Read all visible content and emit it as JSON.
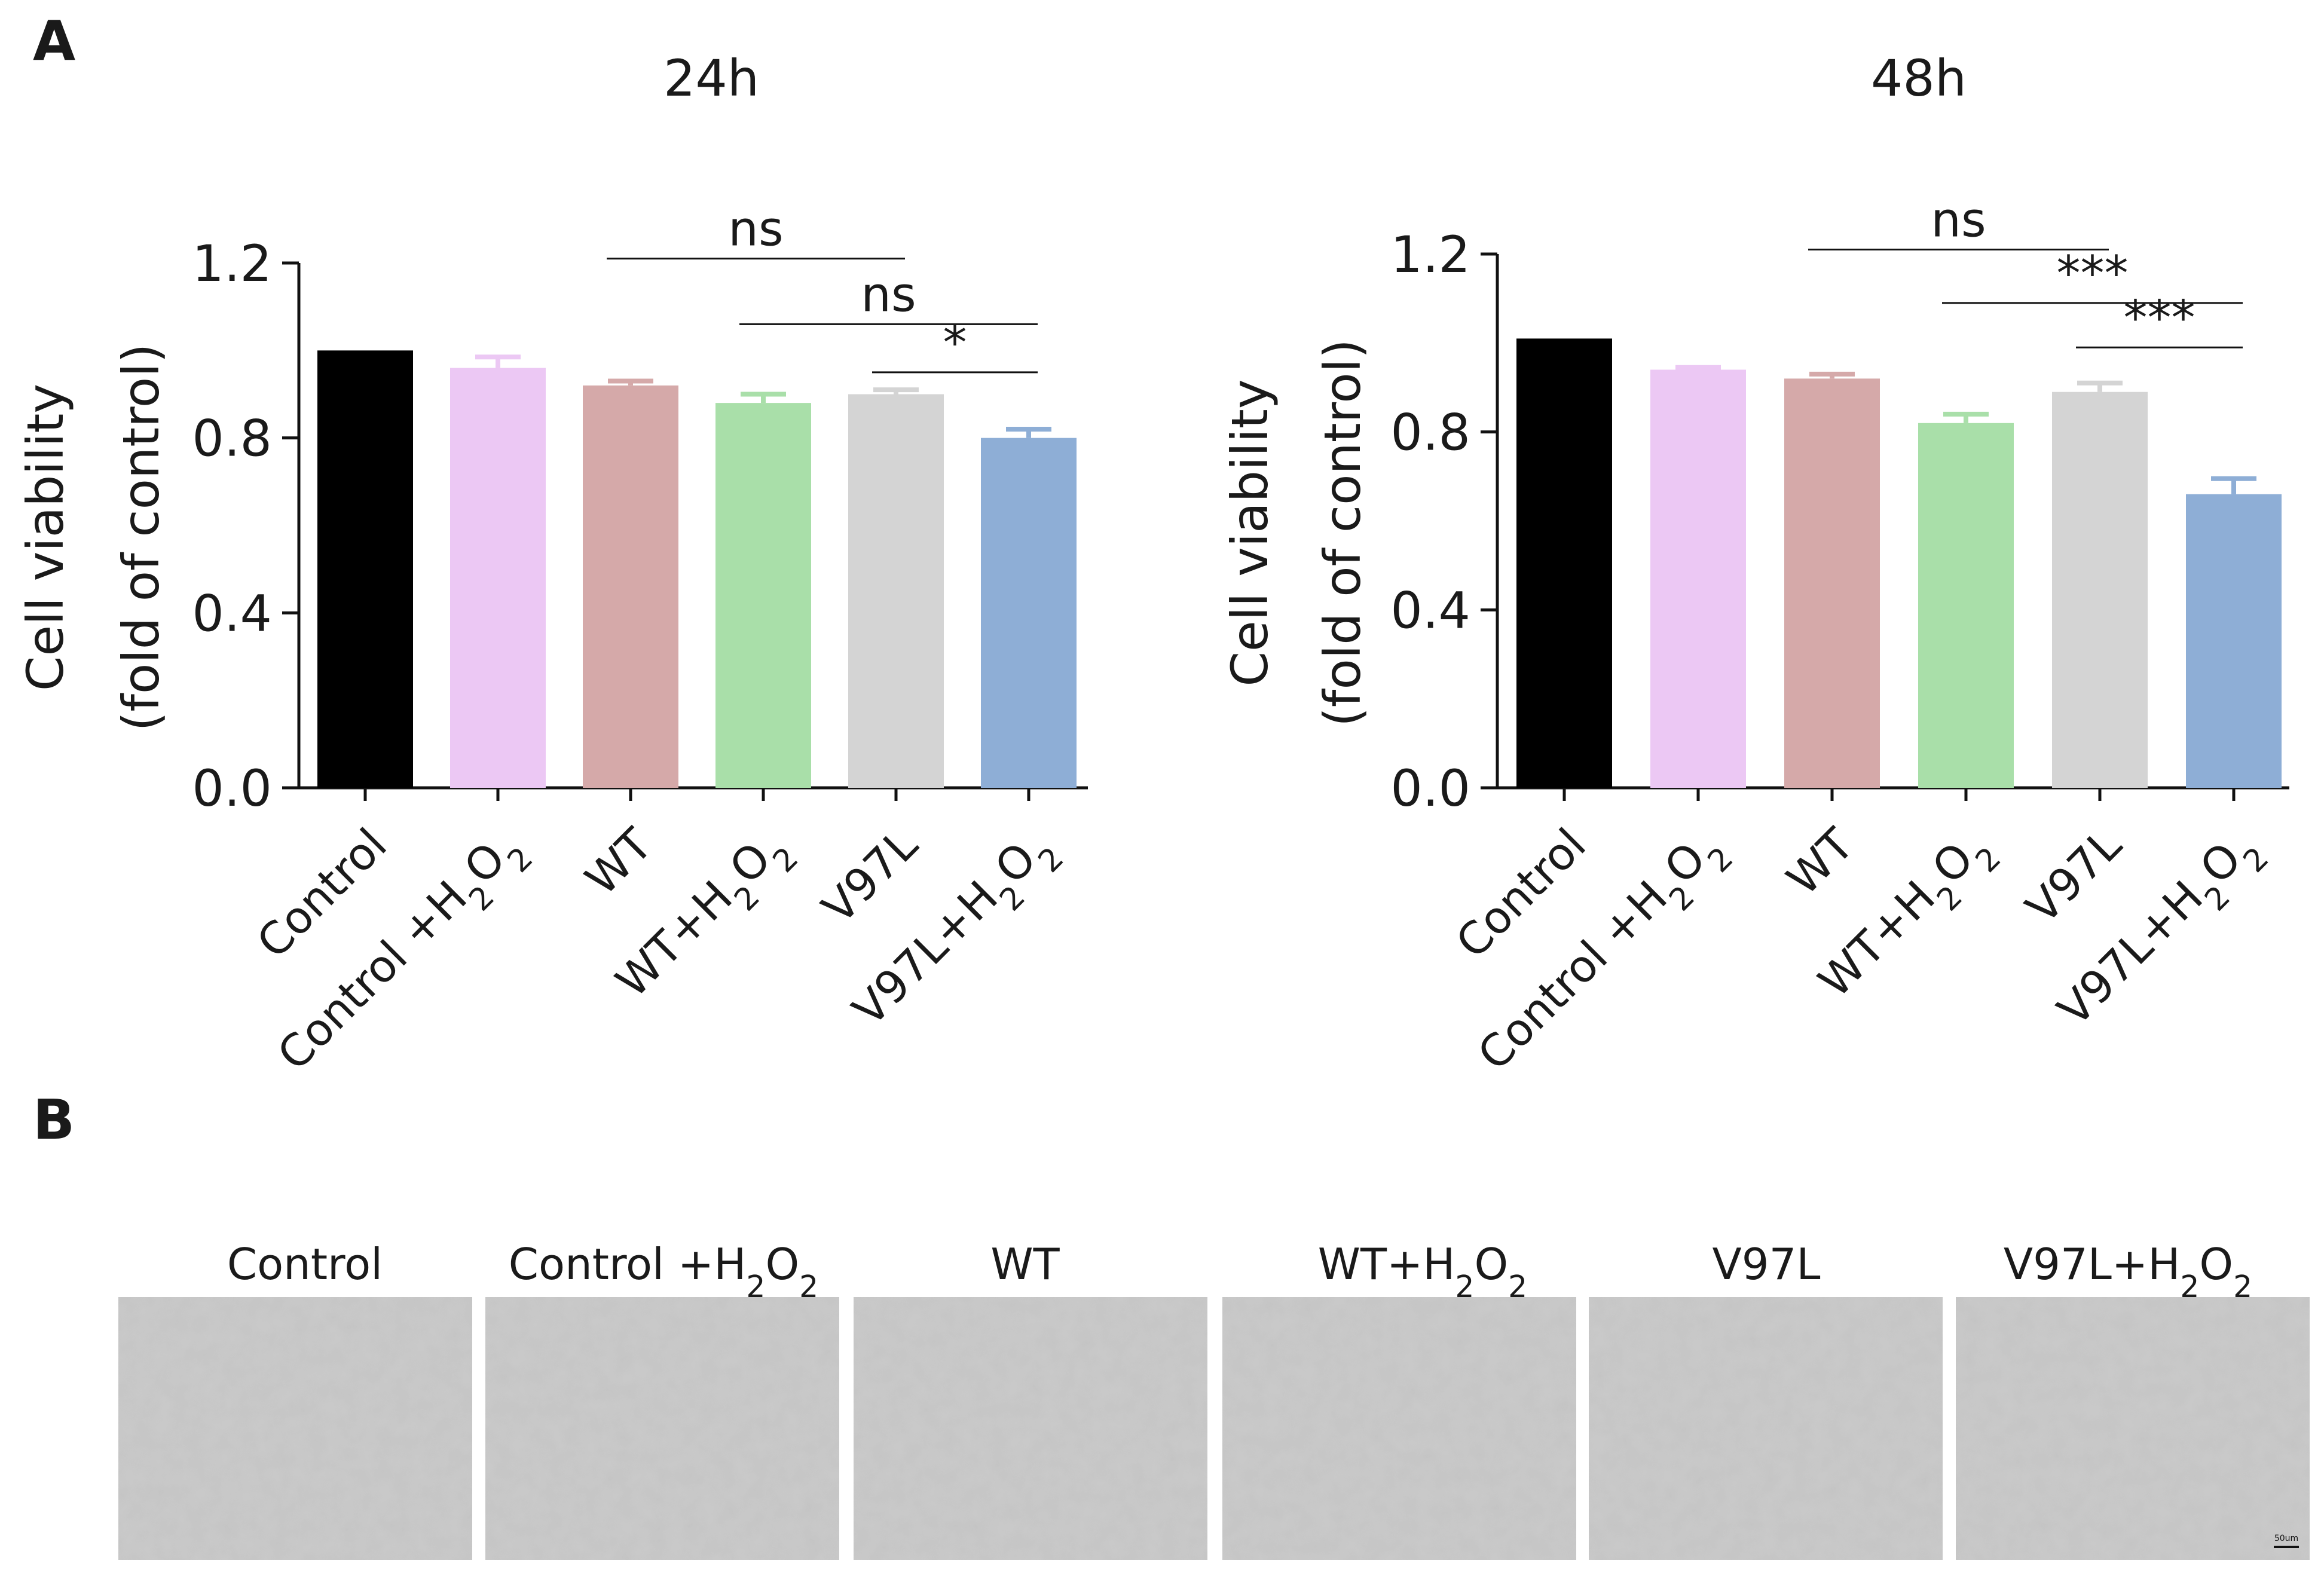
{
  "panels": {
    "a": "A",
    "b": "B"
  },
  "categories": [
    {
      "name": "Control",
      "chem": ""
    },
    {
      "name": "Control +",
      "chem": "H2O2"
    },
    {
      "name": "WT",
      "chem": ""
    },
    {
      "name": "WT+",
      "chem": "H2O2"
    },
    {
      "name": "V97L",
      "chem": ""
    },
    {
      "name": "V97L+",
      "chem": "H2O2"
    }
  ],
  "chart_data": [
    {
      "type": "bar",
      "title": "24h",
      "ylabel_line1": "Cell viability",
      "ylabel_line2": "(fold of control)",
      "ylim": [
        0,
        1.2
      ],
      "yticks": [
        "0.0",
        "0.4",
        "0.8",
        "1.2"
      ],
      "categories": [
        "Control",
        "Control +H2O2",
        "WT",
        "WT+H2O2",
        "V97L",
        "V97L+H2O2"
      ],
      "values": [
        1.0,
        0.96,
        0.92,
        0.88,
        0.9,
        0.8
      ],
      "errors": [
        0.0,
        0.025,
        0.01,
        0.02,
        0.01,
        0.02
      ],
      "colors": [
        "#000000",
        "#ecc8f4",
        "#d5a9a9",
        "#a9dfa9",
        "#d4d4d4",
        "#8eaed6"
      ],
      "significance": [
        {
          "label": "ns",
          "from": 2,
          "to": 4,
          "y": 1.21
        },
        {
          "label": "ns",
          "from": 3,
          "to": 5,
          "y": 1.06
        },
        {
          "label": "*",
          "from": 4,
          "to": 5,
          "y": 0.95
        }
      ]
    },
    {
      "type": "bar",
      "title": "48h",
      "ylabel_line1": "Cell viability",
      "ylabel_line2": "(fold of control)",
      "ylim": [
        0,
        1.2
      ],
      "yticks": [
        "0.0",
        "0.4",
        "0.8",
        "1.2"
      ],
      "categories": [
        "Control",
        "Control +H2O2",
        "WT",
        "WT+H2O2",
        "V97L",
        "V97L+H2O2"
      ],
      "values": [
        1.01,
        0.94,
        0.92,
        0.82,
        0.89,
        0.66
      ],
      "errors": [
        0.0,
        0.005,
        0.01,
        0.02,
        0.02,
        0.035
      ],
      "colors": [
        "#000000",
        "#ecc8f4",
        "#d5a9a9",
        "#a9dfa9",
        "#d4d4d4",
        "#8eaed6"
      ],
      "significance": [
        {
          "label": "ns",
          "from": 2,
          "to": 4,
          "y": 1.21
        },
        {
          "label": "***",
          "from": 3,
          "to": 5,
          "y": 1.09
        },
        {
          "label": "***",
          "from": 4,
          "to": 5,
          "y": 0.99
        }
      ]
    }
  ],
  "micrographs": {
    "labels": [
      "Control",
      "Control +",
      "WT",
      "WT+",
      "V97L",
      "V97L+"
    ],
    "chem": [
      "",
      "H2O2",
      "",
      "H2O2",
      "",
      "H2O2"
    ],
    "scale_bar": "50um"
  }
}
